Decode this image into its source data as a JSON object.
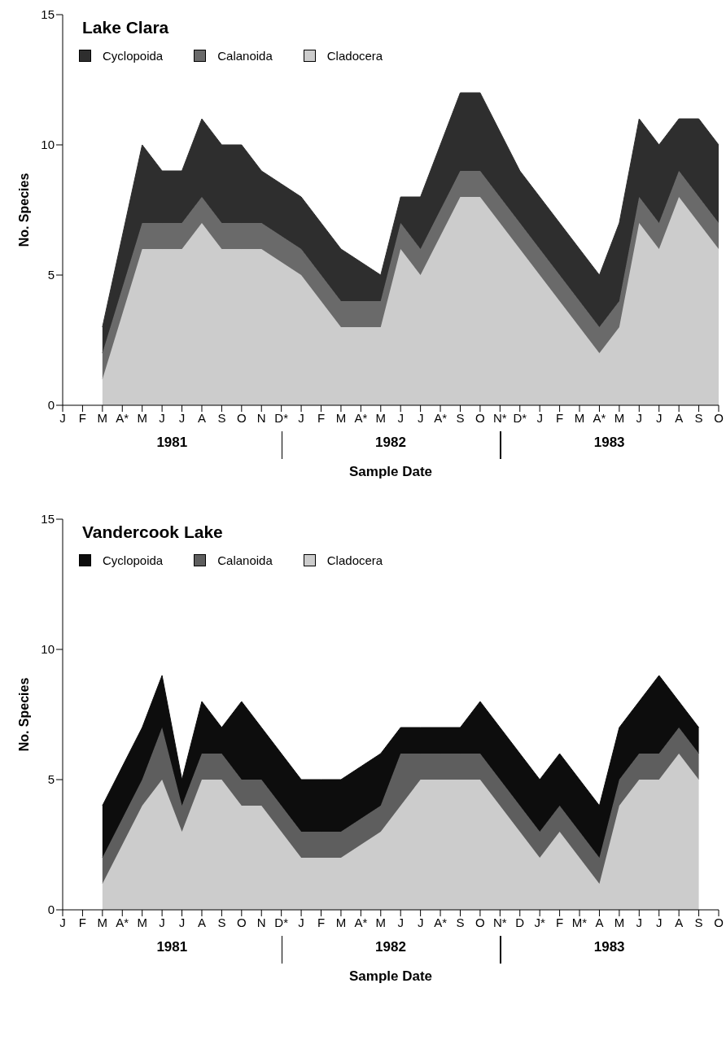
{
  "chart_data": [
    {
      "type": "area",
      "stacked": true,
      "title": "Lake Clara",
      "xlabel": "Sample Date",
      "ylabel": "No. Species",
      "legend": "top left",
      "annotations": [
        "1981",
        "1982",
        "1983"
      ],
      "categories": [
        "J",
        "F",
        "M",
        "A*",
        "M",
        "J",
        "J",
        "A",
        "S",
        "O",
        "N",
        "D*",
        "J",
        "F",
        "M",
        "A*",
        "M",
        "J",
        "J",
        "A*",
        "S",
        "O",
        "N*",
        "D*",
        "J",
        "F",
        "M",
        "A*",
        "M",
        "J",
        "J",
        "A",
        "S",
        "O"
      ],
      "ylim": [
        0,
        15
      ],
      "yticks": [
        0,
        5,
        10,
        15
      ],
      "series": [
        {
          "name": "Cladocera",
          "color": "#cccccc",
          "values": [
            null,
            null,
            1,
            3.5,
            6,
            6,
            6,
            7,
            6,
            6,
            6,
            5.5,
            5,
            4,
            3,
            3,
            3,
            6,
            5,
            6.5,
            8,
            8,
            7,
            6,
            5,
            4,
            3,
            2,
            3,
            7,
            6,
            8,
            7,
            6
          ]
        },
        {
          "name": "Calanoida",
          "color": "#6a6a6a",
          "values": [
            null,
            null,
            1,
            1,
            1,
            1,
            1,
            1,
            1,
            1,
            1,
            1,
            1,
            1,
            1,
            1,
            1,
            1,
            1,
            1,
            1,
            1,
            1,
            1,
            1,
            1,
            1,
            1,
            1,
            1,
            1,
            1,
            1,
            1
          ]
        },
        {
          "name": "Cyclopoida",
          "color": "#2e2e2e",
          "values": [
            null,
            null,
            1,
            2,
            3,
            2,
            2,
            3,
            3,
            3,
            2,
            2,
            2,
            2,
            2,
            1.5,
            1,
            1,
            2,
            2.5,
            3,
            3,
            2.5,
            2,
            2,
            2,
            2,
            2,
            3,
            3,
            3,
            2,
            3,
            3
          ]
        }
      ]
    },
    {
      "type": "area",
      "stacked": true,
      "title": "Vandercook Lake",
      "xlabel": "Sample Date",
      "ylabel": "No. Species",
      "legend": "top left",
      "annotations": [
        "1981",
        "1982",
        "1983"
      ],
      "categories": [
        "J",
        "F",
        "M",
        "A*",
        "M",
        "J",
        "J",
        "A",
        "S",
        "O",
        "N",
        "D*",
        "J",
        "F",
        "M",
        "A*",
        "M",
        "J",
        "J",
        "A*",
        "S",
        "O",
        "N*",
        "D",
        "J*",
        "F",
        "M*",
        "A",
        "M",
        "J",
        "J",
        "A",
        "S",
        "O"
      ],
      "ylim": [
        0,
        15
      ],
      "yticks": [
        0,
        5,
        10,
        15
      ],
      "series": [
        {
          "name": "Cladocera",
          "color": "#cccccc",
          "values": [
            null,
            null,
            1,
            2.5,
            4,
            5,
            3,
            5,
            5,
            4,
            4,
            3,
            2,
            2,
            2,
            2.5,
            3,
            4,
            5,
            5,
            5,
            5,
            4,
            3,
            2,
            3,
            2,
            1,
            4,
            5,
            5,
            6,
            5,
            null
          ]
        },
        {
          "name": "Calanoida",
          "color": "#5e5e5e",
          "values": [
            null,
            null,
            1,
            1,
            1,
            2,
            1,
            1,
            1,
            1,
            1,
            1,
            1,
            1,
            1,
            1,
            1,
            2,
            1,
            1,
            1,
            1,
            1,
            1,
            1,
            1,
            1,
            1,
            1,
            1,
            1,
            1,
            1,
            null
          ]
        },
        {
          "name": "Cyclopoida",
          "color": "#0d0d0d",
          "values": [
            null,
            null,
            2,
            2,
            2,
            2,
            1,
            2,
            1,
            3,
            2,
            2,
            2,
            2,
            2,
            2,
            2,
            1,
            1,
            1,
            1,
            2,
            2,
            2,
            2,
            2,
            2,
            2,
            2,
            2,
            3,
            1,
            1,
            null
          ]
        }
      ]
    }
  ]
}
